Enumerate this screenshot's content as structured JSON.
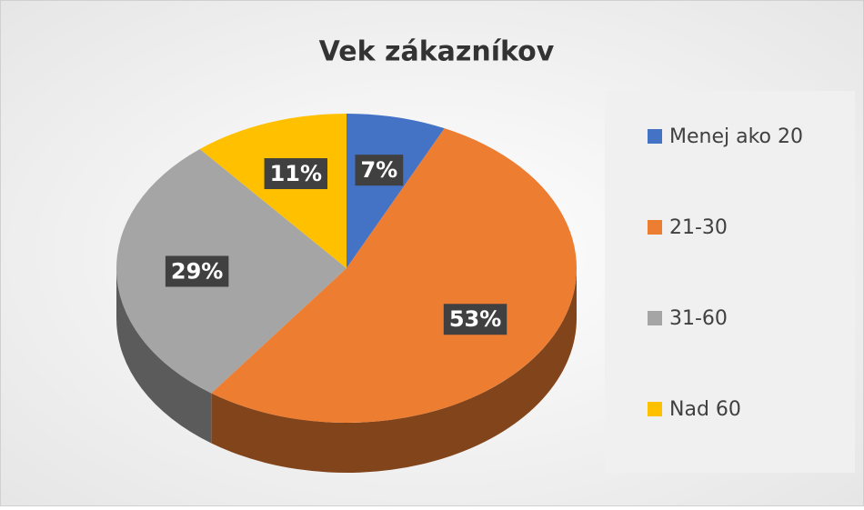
{
  "chart_data": {
    "type": "pie",
    "title": "Vek zákazníkov",
    "categories": [
      "Menej ako 20",
      "21-30",
      "31-60",
      "Nad 60"
    ],
    "values": [
      7,
      53,
      29,
      11
    ],
    "value_labels": [
      "7%",
      "53%",
      "29%",
      "11%"
    ],
    "colors": [
      "#4472c4",
      "#ed7d31",
      "#a5a5a5",
      "#ffc000"
    ],
    "legend": "right"
  }
}
